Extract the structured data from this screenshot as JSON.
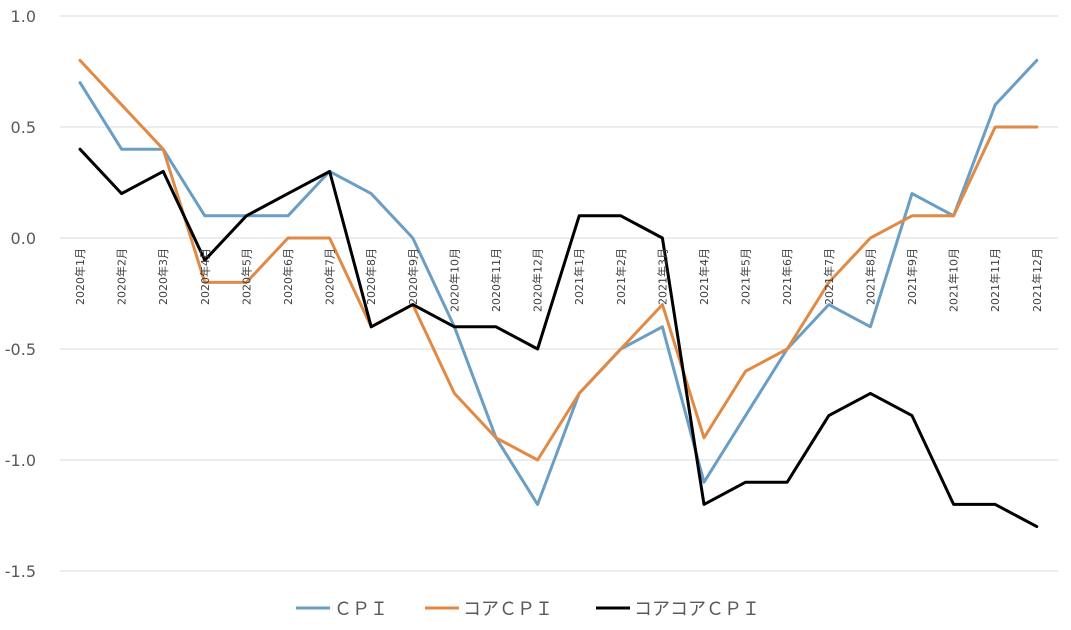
{
  "chart_data": {
    "type": "line",
    "title": "",
    "xlabel": "",
    "ylabel": "",
    "ylim": [
      -1.5,
      1.0
    ],
    "yticks": [
      1.0,
      0.5,
      0.0,
      -0.5,
      -1.0,
      -1.5
    ],
    "ytick_labels": [
      "1.0",
      "0.5",
      "0.0",
      "-0.5",
      "-1.0",
      "-1.5"
    ],
    "grid": true,
    "legend_position": "bottom",
    "categories": [
      "2020年1月",
      "2020年2月",
      "2020年3月",
      "2020年4月",
      "2020年5月",
      "2020年6月",
      "2020年7月",
      "2020年8月",
      "2020年9月",
      "2020年10月",
      "2020年11月",
      "2020年12月",
      "2021年1月",
      "2021年2月",
      "2021年3月",
      "2021年4月",
      "2021年5月",
      "2021年6月",
      "2021年7月",
      "2021年8月",
      "2021年9月",
      "2021年10月",
      "2021年11月",
      "2021年12月"
    ],
    "series": [
      {
        "name": "ＣＰＩ",
        "color": "#6a9ec5",
        "values": [
          0.7,
          0.4,
          0.4,
          0.1,
          0.1,
          0.1,
          0.3,
          0.2,
          0.0,
          -0.4,
          -0.9,
          -1.2,
          -0.7,
          -0.5,
          -0.4,
          -1.1,
          -0.8,
          -0.5,
          -0.3,
          -0.4,
          0.2,
          0.1,
          0.6,
          0.8
        ]
      },
      {
        "name": "コアＣＰＩ",
        "color": "#e08a46",
        "values": [
          0.8,
          0.6,
          0.4,
          -0.2,
          -0.2,
          0.0,
          0.0,
          -0.4,
          -0.3,
          -0.7,
          -0.9,
          -1.0,
          -0.7,
          -0.5,
          -0.3,
          -0.9,
          -0.6,
          -0.5,
          -0.2,
          0.0,
          0.1,
          0.1,
          0.5,
          0.5
        ]
      },
      {
        "name": "コアコアＣＰＩ",
        "color": "#000000",
        "values": [
          0.4,
          0.2,
          0.3,
          -0.1,
          0.1,
          0.2,
          0.3,
          -0.4,
          -0.3,
          -0.4,
          -0.4,
          -0.5,
          0.1,
          0.1,
          0.0,
          -1.2,
          -1.1,
          -1.1,
          -0.8,
          -0.7,
          -0.8,
          -1.2,
          -1.2,
          -1.3
        ]
      }
    ]
  }
}
